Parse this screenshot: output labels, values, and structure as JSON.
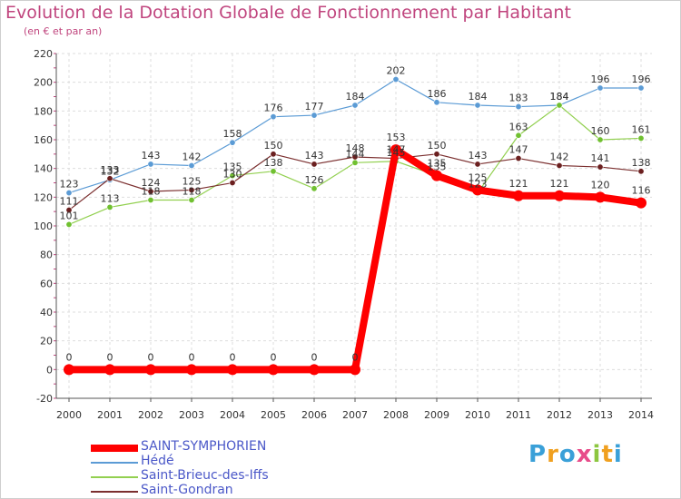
{
  "title": "Evolution de la Dotation Globale de Fonctionnement par Habitant",
  "subtitle": "(en € et par an)",
  "brand": {
    "letters": [
      "P",
      "r",
      "o",
      "x",
      "i",
      "t",
      "i"
    ],
    "letter_colors": [
      "#3aa0d8",
      "#f0a020",
      "#3aa0d8",
      "#e84c8a",
      "#8cc63f",
      "#f0a020",
      "#3aa0d8"
    ]
  },
  "chart_data": {
    "type": "line",
    "title": "Evolution de la Dotation Globale de Fonctionnement par Habitant",
    "subtitle": "(en € et par an)",
    "categories": [
      "2000",
      "2001",
      "2002",
      "2003",
      "2004",
      "2005",
      "2006",
      "2007",
      "2008",
      "2009",
      "2010",
      "2011",
      "2012",
      "2013",
      "2014"
    ],
    "ylim": [
      -20,
      220
    ],
    "yticks": [
      -20,
      0,
      20,
      40,
      60,
      80,
      100,
      120,
      140,
      160,
      180,
      200,
      220
    ],
    "grid": true,
    "legend_position": "bottom-left",
    "series": [
      {
        "name": "SAINT-SYMPHORIEN",
        "color": "#ff0000",
        "marker": "#ff0000",
        "width": 8,
        "values": [
          0,
          0,
          0,
          0,
          0,
          0,
          0,
          0,
          153,
          135,
          125,
          121,
          121,
          120,
          116
        ]
      },
      {
        "name": "Hédé",
        "color": "#5b9bd5",
        "marker": "#5b9bd5",
        "width": 1.2,
        "values": [
          123,
          132,
          143,
          142,
          158,
          176,
          177,
          184,
          202,
          186,
          184,
          183,
          184,
          196,
          196
        ]
      },
      {
        "name": "Saint-Brieuc-des-Iffs",
        "color": "#92d050",
        "marker": "#70c030",
        "width": 1.2,
        "values": [
          101,
          113,
          118,
          118,
          135,
          138,
          126,
          144,
          145,
          135,
          123,
          163,
          184,
          160,
          161
        ]
      },
      {
        "name": "Saint-Gondran",
        "color": "#7b2f2f",
        "marker": "#6b1f1f",
        "width": 1.2,
        "values": [
          111,
          133,
          124,
          125,
          130,
          150,
          143,
          148,
          147,
          150,
          143,
          147,
          142,
          141,
          138
        ]
      }
    ]
  }
}
